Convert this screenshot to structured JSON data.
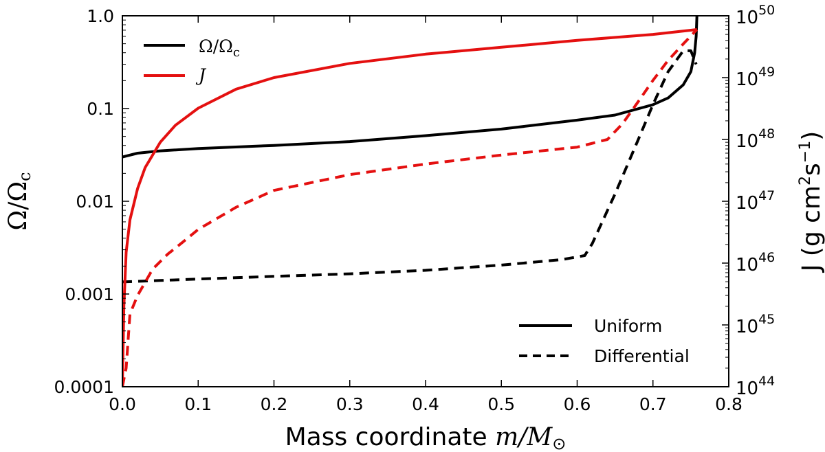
{
  "chart_data": {
    "type": "line",
    "x": {
      "label_text": "Mass coordinate ",
      "label_math": "m/M",
      "label_sub": "⊙",
      "lim": [
        0,
        0.8
      ],
      "ticks": [
        0.0,
        0.1,
        0.2,
        0.3,
        0.4,
        0.5,
        0.6,
        0.7,
        0.8
      ],
      "tick_labels": [
        "0.0",
        "0.1",
        "0.2",
        "0.3",
        "0.4",
        "0.5",
        "0.6",
        "0.7",
        "0.8"
      ]
    },
    "y_left": {
      "label": "Ω/Ω",
      "label_sub": "c",
      "scale": "log",
      "lim": [
        0.0001,
        1.0
      ],
      "ticks": [
        0.0001,
        0.001,
        0.01,
        0.1,
        1.0
      ],
      "tick_labels": [
        "0.0001",
        "0.001",
        "0.01",
        "0.1",
        "1.0"
      ]
    },
    "y_right": {
      "label": "J (g cm",
      "label_sup1": "2",
      "label_mid": "s",
      "label_sup2": "−1",
      "label_end": ")",
      "scale": "log",
      "lim": [
        1e+44,
        1e+50
      ],
      "ticks": [
        1e+44,
        1e+45,
        1e+46,
        1e+47,
        1e+48,
        1e+49,
        1e+50
      ],
      "tick_base": "10",
      "tick_exponents": [
        "44",
        "45",
        "46",
        "47",
        "48",
        "49",
        "50"
      ]
    },
    "series": [
      {
        "name": "Ω/Ωc uniform",
        "axis": "left",
        "color": "#000000",
        "style": "solid",
        "x": [
          0.0,
          0.02,
          0.05,
          0.1,
          0.2,
          0.3,
          0.4,
          0.5,
          0.6,
          0.65,
          0.7,
          0.72,
          0.74,
          0.75,
          0.755,
          0.757,
          0.758
        ],
        "y": [
          0.03,
          0.033,
          0.035,
          0.037,
          0.04,
          0.044,
          0.051,
          0.06,
          0.075,
          0.085,
          0.11,
          0.13,
          0.18,
          0.25,
          0.4,
          0.6,
          1.0
        ]
      },
      {
        "name": "Ω/Ωc differential",
        "axis": "left",
        "color": "#000000",
        "style": "dashed",
        "x": [
          0.0,
          0.05,
          0.1,
          0.2,
          0.3,
          0.4,
          0.5,
          0.58,
          0.61,
          0.62,
          0.65,
          0.68,
          0.7,
          0.72,
          0.74,
          0.75,
          0.757
        ],
        "y": [
          0.00135,
          0.0014,
          0.00145,
          0.00155,
          0.00165,
          0.0018,
          0.00205,
          0.00235,
          0.0026,
          0.0035,
          0.012,
          0.045,
          0.11,
          0.25,
          0.42,
          0.42,
          0.3
        ]
      },
      {
        "name": "J uniform",
        "axis": "right",
        "color": "#e41010",
        "style": "solid",
        "x": [
          0.0,
          0.002,
          0.005,
          0.01,
          0.02,
          0.03,
          0.05,
          0.07,
          0.1,
          0.15,
          0.2,
          0.3,
          0.4,
          0.5,
          0.6,
          0.7,
          0.758
        ],
        "y": [
          1e+44,
          2e+45,
          1.5e+46,
          5e+46,
          1.6e+47,
          3.5e+47,
          9e+47,
          1.7e+48,
          3.2e+48,
          6.5e+48,
          1e+49,
          1.7e+49,
          2.4e+49,
          3.1e+49,
          4e+49,
          5e+49,
          6e+49
        ]
      },
      {
        "name": "J differential",
        "axis": "right",
        "color": "#e41010",
        "style": "dashed",
        "x": [
          0.0,
          0.005,
          0.01,
          0.02,
          0.04,
          0.06,
          0.08,
          0.1,
          0.15,
          0.2,
          0.3,
          0.4,
          0.5,
          0.6,
          0.64,
          0.66,
          0.68,
          0.7,
          0.72,
          0.74,
          0.758
        ],
        "y": [
          1e+44,
          2e+44,
          1.5e+45,
          3e+45,
          8e+45,
          1.4e+46,
          2.2e+46,
          3.5e+46,
          8e+46,
          1.5e+47,
          2.7e+47,
          4e+47,
          5.6e+47,
          7.5e+47,
          1e+48,
          1.8e+48,
          4e+48,
          9e+48,
          1.9e+49,
          3.5e+49,
          6e+49
        ]
      }
    ],
    "legend_top_left": [
      {
        "label": "Ω/Ω",
        "label_sub": "c",
        "color": "#000000",
        "style": "solid"
      },
      {
        "label": "J",
        "color": "#e41010",
        "style": "solid"
      }
    ],
    "legend_bottom_right": [
      {
        "label": "Uniform",
        "color": "#000000",
        "style": "solid"
      },
      {
        "label": "Differential",
        "color": "#000000",
        "style": "dashed"
      }
    ]
  }
}
